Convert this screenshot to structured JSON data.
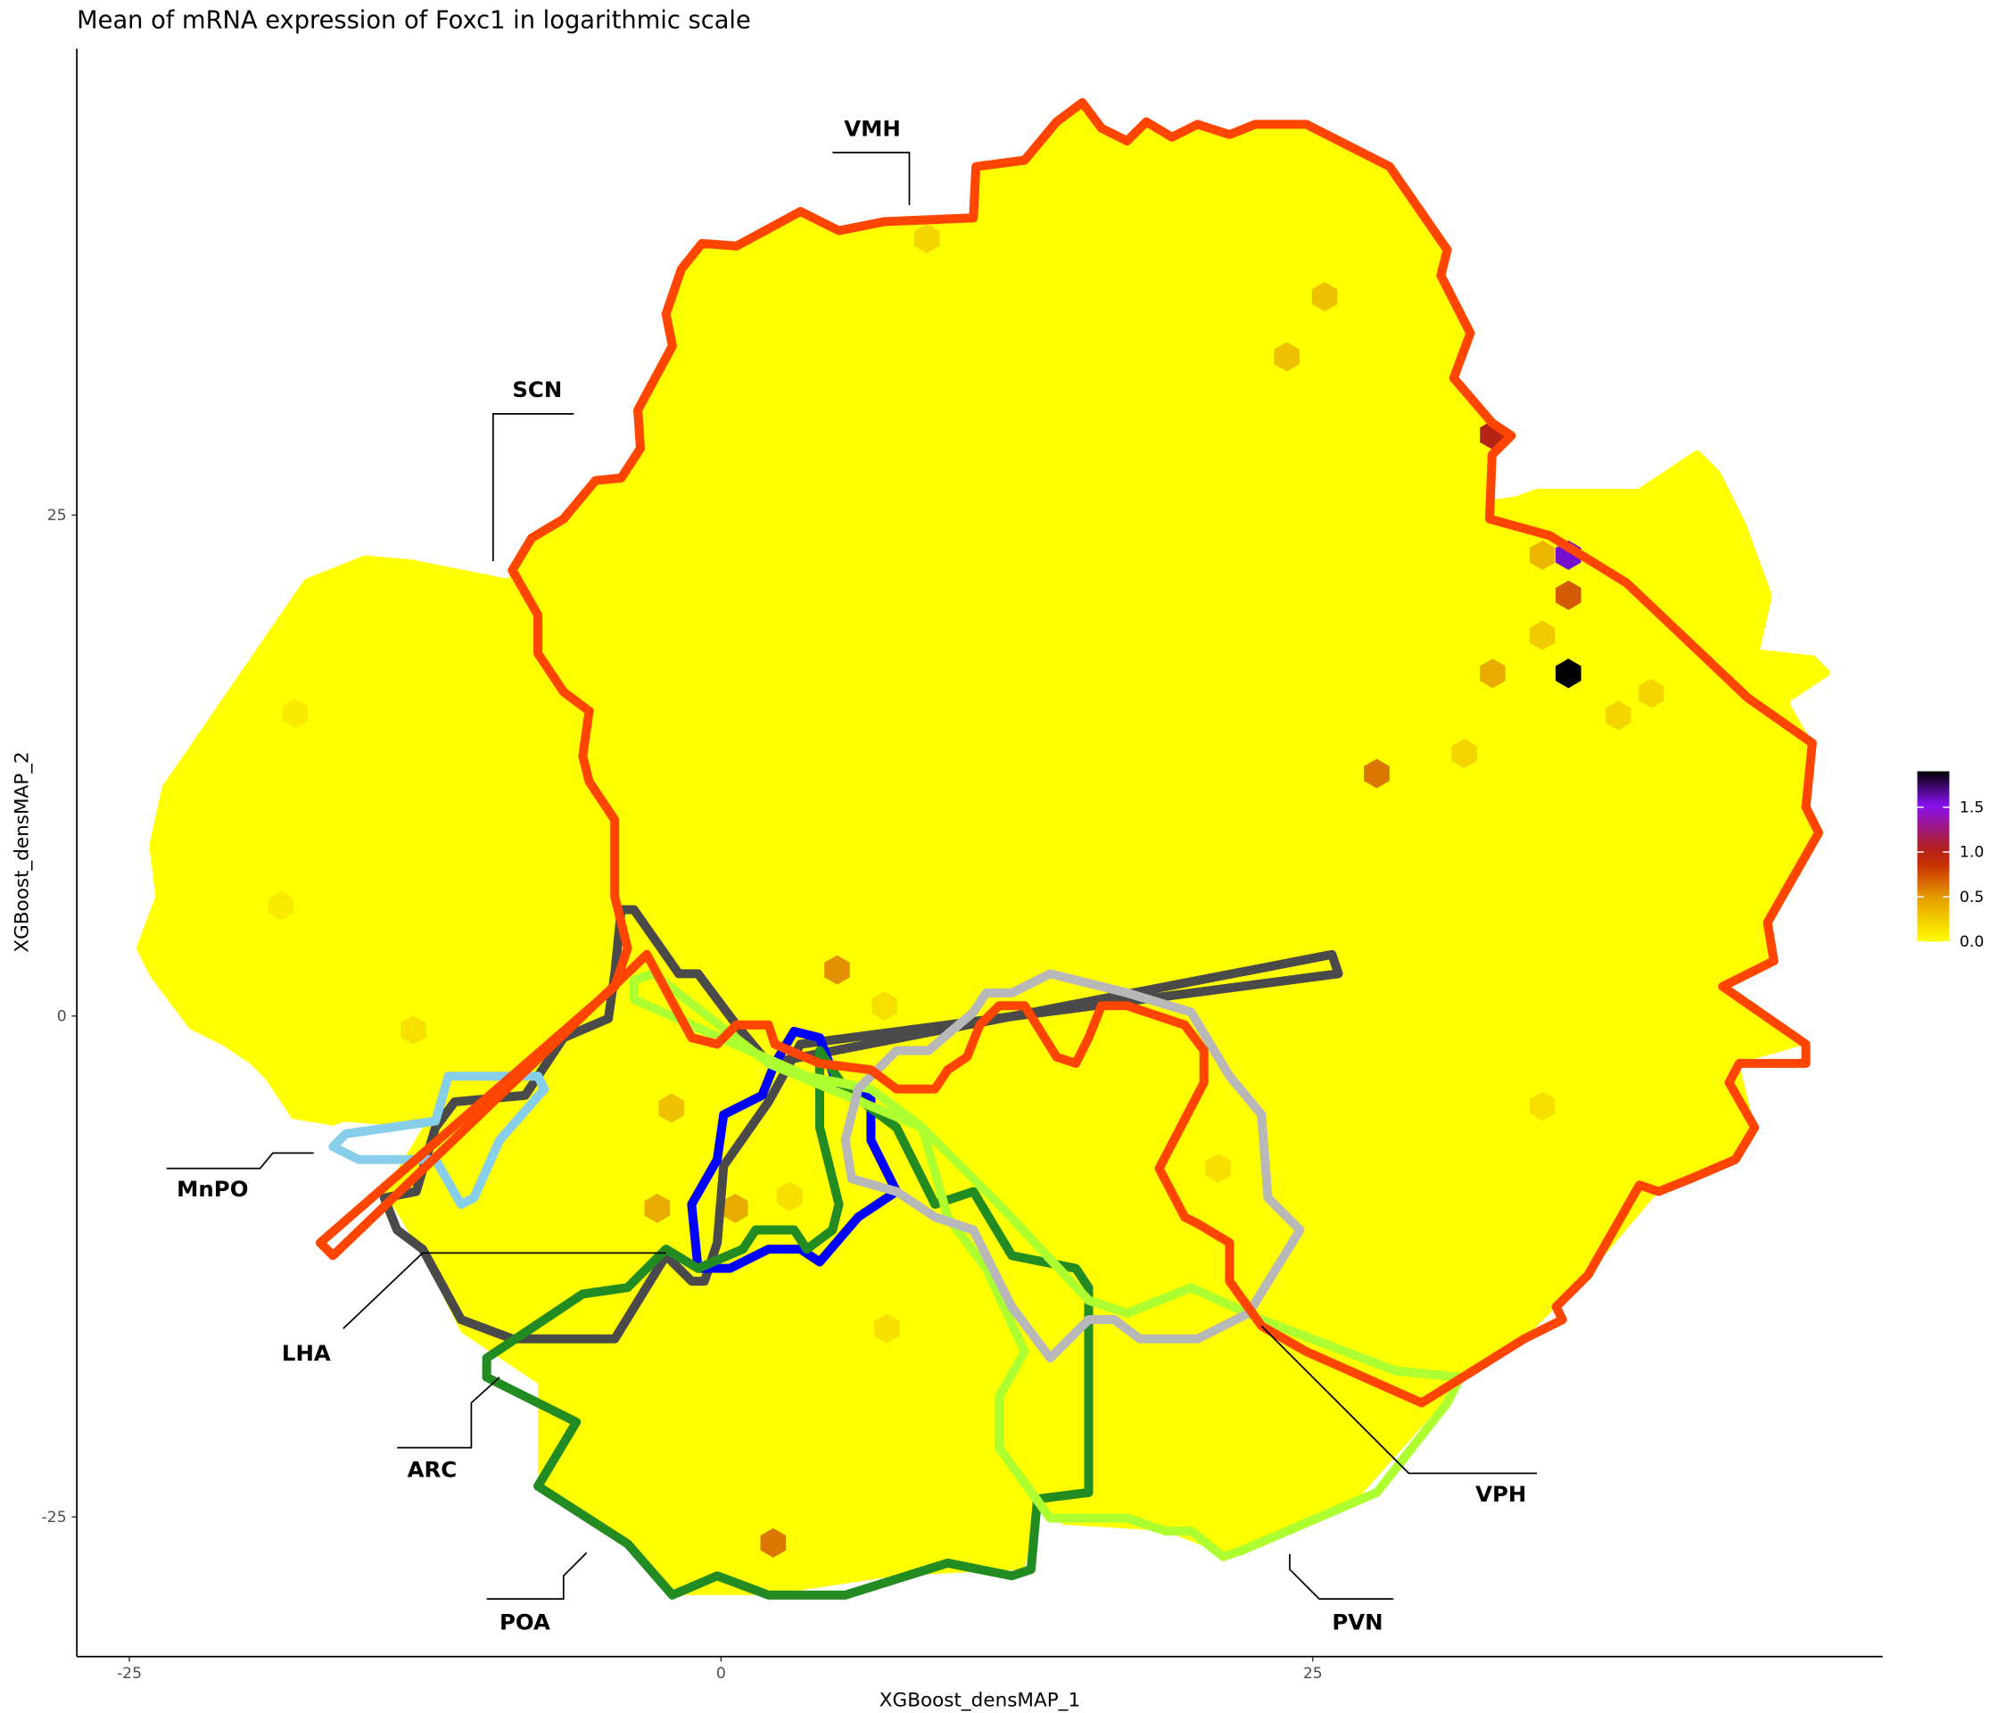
{
  "chart_data": {
    "type": "hexbin",
    "title": "Mean of mRNA expression of Foxc1 in logarithmic scale",
    "xlabel": "XGBoost_densMAP_1",
    "ylabel": "XGBoost_densMAP_2",
    "xlim": [
      -25,
      49
    ],
    "ylim": [
      -32,
      48
    ],
    "x_ticks": [
      "-25",
      "0",
      "25"
    ],
    "y_ticks": [
      "25",
      "0",
      "-25"
    ],
    "grid": false,
    "background_value": 0.0,
    "legend": {
      "position": "right",
      "ticks": [
        "1.5",
        "1.0",
        "0.5",
        "0.0"
      ],
      "range": [
        0,
        1.9
      ],
      "colors": [
        "#ffff00",
        "#e6a000",
        "#c03000",
        "#b02020",
        "#8a10f0",
        "#000000"
      ]
    },
    "highlighted_bins": [
      {
        "x": 35.8,
        "y": 17.1,
        "value": 1.9
      },
      {
        "x": 35.8,
        "y": 23.0,
        "value": 1.6
      },
      {
        "x": 32.6,
        "y": 29.0,
        "value": 1.0
      },
      {
        "x": 35.8,
        "y": 21.0,
        "value": 0.7
      },
      {
        "x": 27.7,
        "y": 12.1,
        "value": 0.6
      },
      {
        "x": 2.2,
        "y": -26.3,
        "value": 0.6
      },
      {
        "x": 4.9,
        "y": 2.3,
        "value": 0.5
      },
      {
        "x": 32.6,
        "y": 17.1,
        "value": 0.4
      },
      {
        "x": 34.7,
        "y": 23.0,
        "value": 0.35
      },
      {
        "x": 25.5,
        "y": 35.9,
        "value": 0.3
      },
      {
        "x": 23.9,
        "y": 32.9,
        "value": 0.3
      },
      {
        "x": 8.7,
        "y": 38.8,
        "value": 0.2
      },
      {
        "x": -2.7,
        "y": -9.6,
        "value": 0.4
      },
      {
        "x": 0.6,
        "y": -9.6,
        "value": 0.4
      },
      {
        "x": -2.1,
        "y": -4.6,
        "value": 0.3
      },
      {
        "x": 34.7,
        "y": 19.0,
        "value": 0.25
      },
      {
        "x": 37.9,
        "y": 15.0,
        "value": 0.2
      },
      {
        "x": 39.3,
        "y": 16.1,
        "value": 0.2
      },
      {
        "x": 31.4,
        "y": 13.1,
        "value": 0.2
      },
      {
        "x": -18.0,
        "y": 15.1,
        "value": 0.1
      },
      {
        "x": -18.6,
        "y": 5.5,
        "value": 0.1
      },
      {
        "x": -13.0,
        "y": -0.7,
        "value": 0.15
      },
      {
        "x": 6.9,
        "y": 0.5,
        "value": 0.15
      },
      {
        "x": 2.9,
        "y": -9.0,
        "value": 0.15
      },
      {
        "x": 7.0,
        "y": -15.6,
        "value": 0.15
      },
      {
        "x": 21.0,
        "y": -7.6,
        "value": 0.15
      },
      {
        "x": 34.7,
        "y": -4.5,
        "value": 0.15
      }
    ],
    "regions": [
      "VMH",
      "SCN",
      "MnPO",
      "LHA",
      "ARC",
      "POA",
      "PVN",
      "VPH"
    ]
  }
}
